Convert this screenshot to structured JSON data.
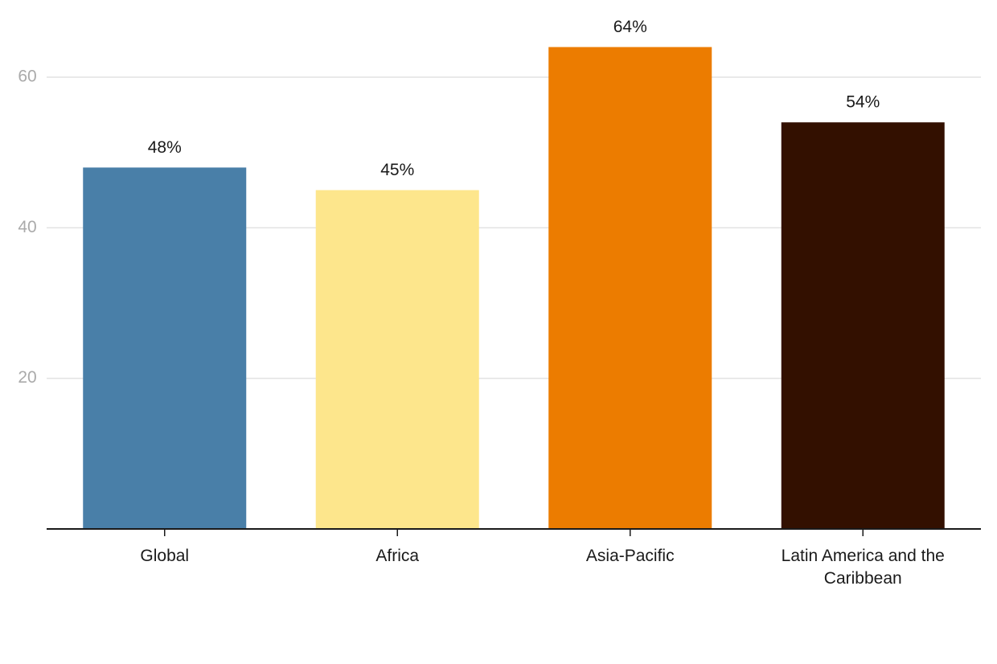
{
  "chart_data": {
    "type": "bar",
    "categories": [
      "Global",
      "Africa",
      "Asia-Pacific",
      "Latin America and the Caribbean"
    ],
    "values": [
      48,
      45,
      64,
      54
    ],
    "value_labels": [
      "48%",
      "45%",
      "64%",
      "54%"
    ],
    "colors": [
      "#497fa8",
      "#fde68c",
      "#ec7c00",
      "#331000"
    ],
    "ylim": [
      0,
      70
    ],
    "yticks": [
      20,
      40,
      60
    ],
    "grid": true
  }
}
